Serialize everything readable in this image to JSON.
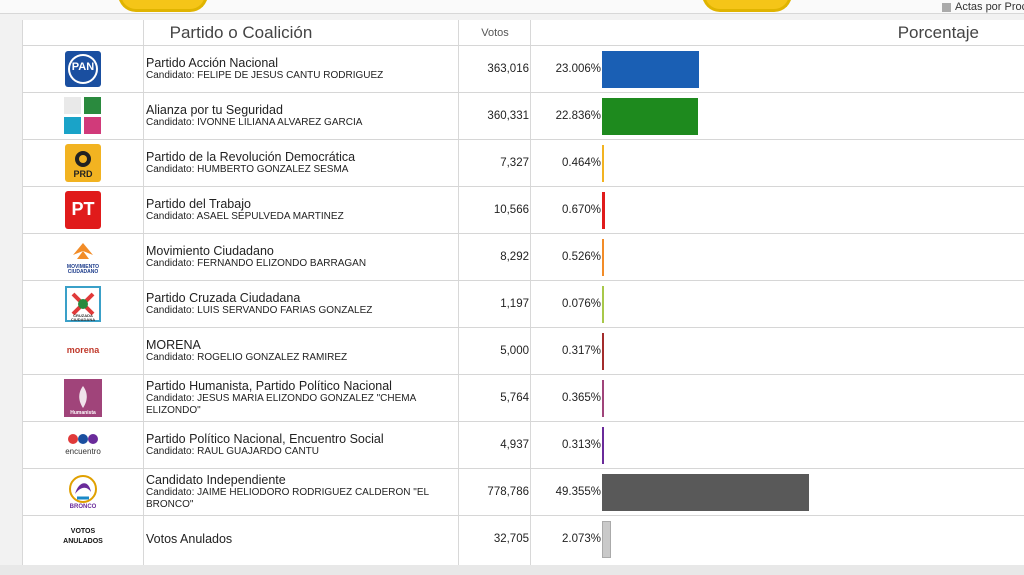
{
  "header": {
    "party_col": "Partido o Coalición",
    "votes_col": "Votos",
    "pct_col": "Porcentaje",
    "legend": "Actas por Proc"
  },
  "colors": {
    "bar_pan": "#1a5fb4",
    "bar_alianza": "#1e8a1e",
    "bar_prd": "#f2b321",
    "bar_pt": "#e01b1b",
    "bar_mc": "#f28c28",
    "bar_pcc": "#a8c84a",
    "bar_morena": "#a32c2c",
    "bar_ph": "#a0447a",
    "bar_pes": "#6a2b9a",
    "bar_ind": "#595959",
    "bar_anulados": "#c9c9c9"
  },
  "chart_data": {
    "type": "bar",
    "orientation": "horizontal",
    "title": "Porcentaje",
    "categories": [
      "Partido Acción Nacional",
      "Alianza por tu Seguridad",
      "Partido de la Revolución Democrática",
      "Partido del Trabajo",
      "Movimiento Ciudadano",
      "Partido Cruzada Ciudadana",
      "MORENA",
      "Partido Humanista, Partido Político Nacional",
      "Partido Político Nacional, Encuentro Social",
      "Candidato Independiente",
      "Votos Anulados"
    ],
    "votes": [
      363016,
      360331,
      7327,
      10566,
      8292,
      1197,
      5000,
      5764,
      4937,
      778786,
      32705
    ],
    "values": [
      23.006,
      22.836,
      0.464,
      0.67,
      0.526,
      0.076,
      0.317,
      0.365,
      0.313,
      49.355,
      2.073
    ],
    "xlim": [
      0,
      100
    ]
  },
  "rows": [
    {
      "logo": "PAN",
      "party": "Partido Acción Nacional",
      "candidate": "Candidato: FELIPE DE JESUS CANTU RODRIGUEZ",
      "votes": "363,016",
      "pct": "23.006%",
      "color": "#1a5fb4",
      "value": 23.006
    },
    {
      "logo": "",
      "party": "Alianza por tu Seguridad",
      "candidate": "Candidato: IVONNE LILIANA ALVAREZ GARCIA",
      "votes": "360,331",
      "pct": "22.836%",
      "color": "#1e8a1e",
      "value": 22.836
    },
    {
      "logo": "PRD",
      "party": "Partido de la Revolución Democrática",
      "candidate": "Candidato: HUMBERTO GONZALEZ SESMA",
      "votes": "7,327",
      "pct": "0.464%",
      "color": "#f2b321",
      "value": 0.464
    },
    {
      "logo": "PT",
      "party": "Partido del Trabajo",
      "candidate": "Candidato: ASAEL SEPULVEDA MARTINEZ",
      "votes": "10,566",
      "pct": "0.670%",
      "color": "#e01b1b",
      "value": 0.67
    },
    {
      "logo": "MOVIMIENTO CIUDADANO",
      "party": "Movimiento Ciudadano",
      "candidate": "Candidato: FERNANDO ELIZONDO BARRAGAN",
      "votes": "8,292",
      "pct": "0.526%",
      "color": "#f28c28",
      "value": 0.526
    },
    {
      "logo": "CRUZADA CIUDADANA",
      "party": "Partido Cruzada Ciudadana",
      "candidate": "Candidato: LUIS SERVANDO FARIAS GONZALEZ",
      "votes": "1,197",
      "pct": "0.076%",
      "color": "#a8c84a",
      "value": 0.076
    },
    {
      "logo": "morena",
      "party": "MORENA",
      "candidate": "Candidato: ROGELIO GONZALEZ RAMIREZ",
      "votes": "5,000",
      "pct": "0.317%",
      "color": "#a32c2c",
      "value": 0.317
    },
    {
      "logo": "Humanista",
      "party": "Partido Humanista, Partido Político Nacional",
      "candidate": "Candidato: JESUS MARIA ELIZONDO GONZALEZ \"CHEMA ELIZONDO\"",
      "votes": "5,764",
      "pct": "0.365%",
      "color": "#a0447a",
      "value": 0.365
    },
    {
      "logo": "encuentro",
      "party": "Partido Político Nacional, Encuentro Social",
      "candidate": "Candidato: RAUL GUAJARDO CANTU",
      "votes": "4,937",
      "pct": "0.313%",
      "color": "#6a2b9a",
      "value": 0.313
    },
    {
      "logo": "BRONCO",
      "party": "Candidato Independiente",
      "candidate": "Candidato: JAIME HELIODORO RODRIGUEZ CALDERON \"EL BRONCO\"",
      "votes": "778,786",
      "pct": "49.355%",
      "color": "#595959",
      "value": 49.355
    },
    {
      "logo": "VOTOS ANULADOS",
      "party": "Votos Anulados",
      "candidate": "",
      "votes": "32,705",
      "pct": "2.073%",
      "color": "#c9c9c9",
      "value": 2.073
    }
  ]
}
